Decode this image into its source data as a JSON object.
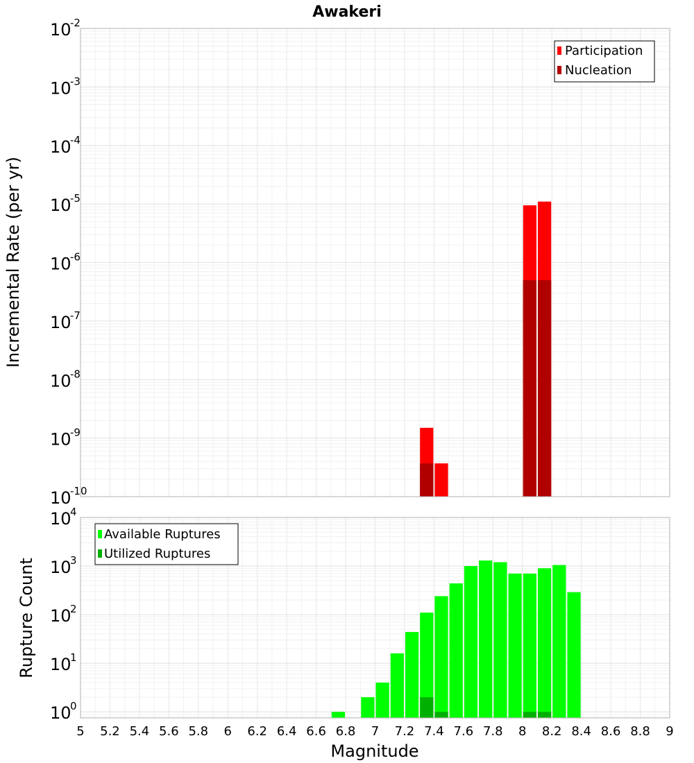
{
  "chart_data": [
    {
      "type": "bar",
      "title": "Awakeri",
      "ylabel": "Incremental Rate (per yr)",
      "yscale": "log",
      "ylim": [
        1e-10,
        0.01
      ],
      "xlim": [
        5,
        9
      ],
      "ytick_exponents": [
        "-10",
        "-9",
        "-8",
        "-7",
        "-6",
        "-5",
        "-4",
        "-3",
        "-2"
      ],
      "ytick_base": "10",
      "legend": {
        "placement": "top-right",
        "entries": [
          {
            "name": "Participation",
            "color": "#ff0000"
          },
          {
            "name": "Nucleation",
            "color": "#b00000"
          }
        ]
      },
      "bin_width": 0.1,
      "series": [
        {
          "name": "Participation",
          "color": "#ff0000",
          "x": [
            7.35,
            7.45,
            8.05,
            8.15
          ],
          "values": [
            1.5e-09,
            3.7e-10,
            9.5e-06,
            1.1e-05
          ]
        },
        {
          "name": "Nucleation",
          "color": "#b00000",
          "x": [
            7.35,
            8.05,
            8.15
          ],
          "values": [
            3.7e-10,
            5e-07,
            5e-07
          ]
        }
      ]
    },
    {
      "type": "bar",
      "xlabel": "Magnitude",
      "ylabel": "Rupture Count",
      "yscale": "log",
      "ylim": [
        0.75,
        10000
      ],
      "xlim": [
        5,
        9
      ],
      "ytick_exponents": [
        "0",
        "1",
        "2",
        "3",
        "4"
      ],
      "ytick_base": "10",
      "xticks": [
        "5",
        "5.2",
        "5.4",
        "5.6",
        "5.8",
        "6",
        "6.2",
        "6.4",
        "6.6",
        "6.8",
        "7",
        "7.2",
        "7.4",
        "7.6",
        "7.8",
        "8",
        "8.2",
        "8.4",
        "8.6",
        "8.8",
        "9"
      ],
      "legend": {
        "placement": "top-left",
        "entries": [
          {
            "name": "Available Ruptures",
            "color": "#00ff00"
          },
          {
            "name": "Utilized Ruptures",
            "color": "#00b000"
          }
        ]
      },
      "bin_width": 0.1,
      "series": [
        {
          "name": "Available Ruptures",
          "color": "#00ff00",
          "x": [
            6.75,
            6.95,
            7.05,
            7.15,
            7.25,
            7.35,
            7.45,
            7.55,
            7.65,
            7.75,
            7.85,
            7.95,
            8.05,
            8.15,
            8.25,
            8.35
          ],
          "values": [
            1,
            2,
            4,
            16,
            44,
            110,
            240,
            440,
            1000,
            1300,
            1200,
            700,
            700,
            900,
            1050,
            290
          ]
        },
        {
          "name": "Utilized Ruptures",
          "color": "#00b000",
          "x": [
            7.35,
            7.45,
            8.05,
            8.15
          ],
          "values": [
            2,
            1,
            1,
            1
          ]
        }
      ]
    }
  ]
}
